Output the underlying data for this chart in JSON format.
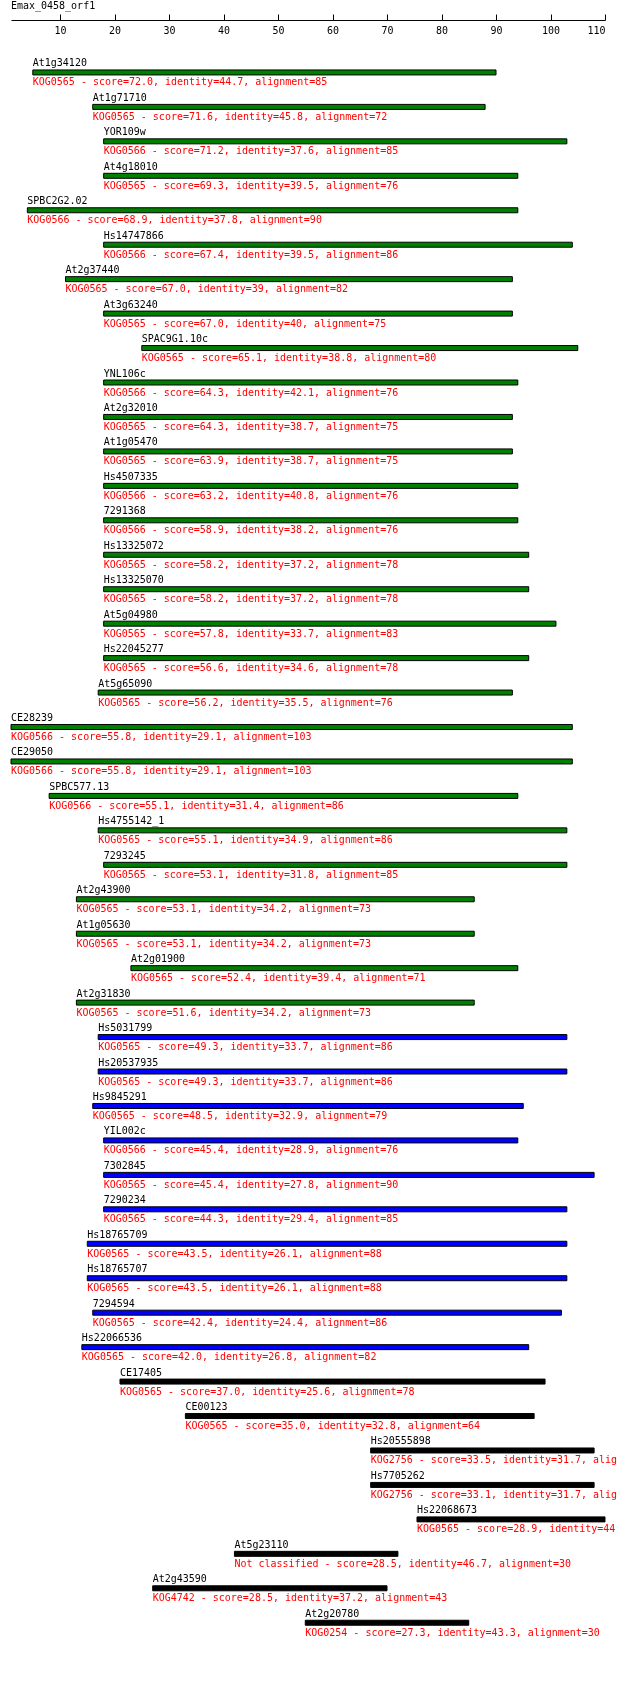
{
  "chart_data": {
    "type": "bar",
    "orientation": "horizontal",
    "title": "Emax_0458_orf1",
    "categories": [
      "At1g34120",
      "At1g71710",
      "YOR109w",
      "At4g18010",
      "SPBC2G2.02",
      "Hs14747866",
      "At2g37440",
      "At3g63240",
      "SPAC9G1.10c",
      "YNL106c",
      "At2g32010",
      "At1g05470",
      "Hs4507335",
      "7291368",
      "Hs13325072",
      "Hs13325070",
      "At5g04980",
      "Hs22045277",
      "At5g65090",
      "CE28239",
      "CE29050",
      "SPBC577.13",
      "Hs4755142_1",
      "7293245",
      "At2g43900",
      "At1g05630",
      "At2g01900",
      "At2g31830",
      "Hs5031799",
      "Hs20537935",
      "Hs9845291",
      "YIL002c",
      "7302845",
      "7290234",
      "Hs18765709",
      "Hs18765707",
      "7294594",
      "Hs22066536",
      "CE17405",
      "CE00123",
      "Hs20555898",
      "Hs7705262",
      "Hs22068673",
      "At5g23110",
      "At2g43590",
      "At2g20780"
    ],
    "base": [
      5,
      16,
      18,
      18,
      4,
      18,
      11,
      18,
      25,
      18,
      18,
      18,
      18,
      18,
      18,
      18,
      18,
      18,
      17,
      1,
      1,
      8,
      17,
      18,
      13,
      13,
      23,
      13,
      17,
      17,
      16,
      18,
      18,
      18,
      15,
      15,
      16,
      14,
      21,
      33,
      67,
      67,
      75.5,
      42,
      27,
      55
    ],
    "values": [
      85,
      72,
      85,
      76,
      90,
      86,
      82,
      75,
      80,
      76,
      75,
      75,
      76,
      76,
      78,
      78,
      83,
      78,
      76,
      103,
      103,
      86,
      86,
      85,
      73,
      73,
      71,
      73,
      86,
      86,
      79,
      76,
      90,
      85,
      88,
      88,
      86,
      82,
      78,
      64,
      41,
      41,
      34.5,
      30,
      43,
      30
    ],
    "colors": [
      "#008000",
      "#008000",
      "#008000",
      "#008000",
      "#008000",
      "#008000",
      "#008000",
      "#008000",
      "#008000",
      "#008000",
      "#008000",
      "#008000",
      "#008000",
      "#008000",
      "#008000",
      "#008000",
      "#008000",
      "#008000",
      "#008000",
      "#008000",
      "#008000",
      "#008000",
      "#008000",
      "#008000",
      "#008000",
      "#008000",
      "#008000",
      "#008000",
      "#0000ff",
      "#0000ff",
      "#0000ff",
      "#0000ff",
      "#0000ff",
      "#0000ff",
      "#0000ff",
      "#0000ff",
      "#0000ff",
      "#0000ff",
      "#000000",
      "#000000",
      "#000000",
      "#000000",
      "#000000",
      "#000000",
      "#000000",
      "#000000"
    ],
    "value_labels": [
      "KOG0565 - score=72.0, identity=44.7, alignment=85",
      "KOG0565 - score=71.6, identity=45.8, alignment=72",
      "KOG0566 - score=71.2, identity=37.6, alignment=85",
      "KOG0565 - score=69.3, identity=39.5, alignment=76",
      "KOG0566 - score=68.9, identity=37.8, alignment=90",
      "KOG0566 - score=67.4, identity=39.5, alignment=86",
      "KOG0565 - score=67.0, identity=39, alignment=82",
      "KOG0565 - score=67.0, identity=40, alignment=75",
      "KOG0565 - score=65.1, identity=38.8, alignment=80",
      "KOG0566 - score=64.3, identity=42.1, alignment=76",
      "KOG0565 - score=64.3, identity=38.7, alignment=75",
      "KOG0565 - score=63.9, identity=38.7, alignment=75",
      "KOG0566 - score=63.2, identity=40.8, alignment=76",
      "KOG0566 - score=58.9, identity=38.2, alignment=76",
      "KOG0565 - score=58.2, identity=37.2, alignment=78",
      "KOG0565 - score=58.2, identity=37.2, alignment=78",
      "KOG0565 - score=57.8, identity=33.7, alignment=83",
      "KOG0565 - score=56.6, identity=34.6, alignment=78",
      "KOG0565 - score=56.2, identity=35.5, alignment=76",
      "KOG0566 - score=55.8, identity=29.1, alignment=103",
      "KOG0566 - score=55.8, identity=29.1, alignment=103",
      "KOG0566 - score=55.1, identity=31.4, alignment=86",
      "KOG0565 - score=55.1, identity=34.9, alignment=86",
      "KOG0565 - score=53.1, identity=31.8, alignment=85",
      "KOG0565 - score=53.1, identity=34.2, alignment=73",
      "KOG0565 - score=53.1, identity=34.2, alignment=73",
      "KOG0565 - score=52.4, identity=39.4, alignment=71",
      "KOG0565 - score=51.6, identity=34.2, alignment=73",
      "KOG0565 - score=49.3, identity=33.7, alignment=86",
      "KOG0565 - score=49.3, identity=33.7, alignment=86",
      "KOG0565 - score=48.5, identity=32.9, alignment=79",
      "KOG0566 - score=45.4, identity=28.9, alignment=76",
      "KOG0565 - score=45.4, identity=27.8, alignment=90",
      "KOG0565 - score=44.3, identity=29.4, alignment=85",
      "KOG0565 - score=43.5, identity=26.1, alignment=88",
      "KOG0565 - score=43.5, identity=26.1, alignment=88",
      "KOG0565 - score=42.4, identity=24.4, alignment=86",
      "KOG0565 - score=42.0, identity=26.8, alignment=82",
      "KOG0565 - score=37.0, identity=25.6, alignment=78",
      "KOG0565 - score=35.0, identity=32.8, alignment=64",
      "KOG2756 - score=33.5, identity=31.7, alig",
      "KOG2756 - score=33.1, identity=31.7, alig",
      "KOG0565 - score=28.9, identity=44",
      "Not classified - score=28.5, identity=46.7, alignment=30",
      "KOG4742 - score=28.5, identity=37.2, alignment=43",
      "KOG0254 - score=27.3, identity=43.3, alignment=30"
    ],
    "xlim": [
      1,
      110
    ],
    "xticks": [
      10,
      20,
      30,
      40,
      50,
      60,
      70,
      80,
      90,
      100,
      110
    ]
  }
}
